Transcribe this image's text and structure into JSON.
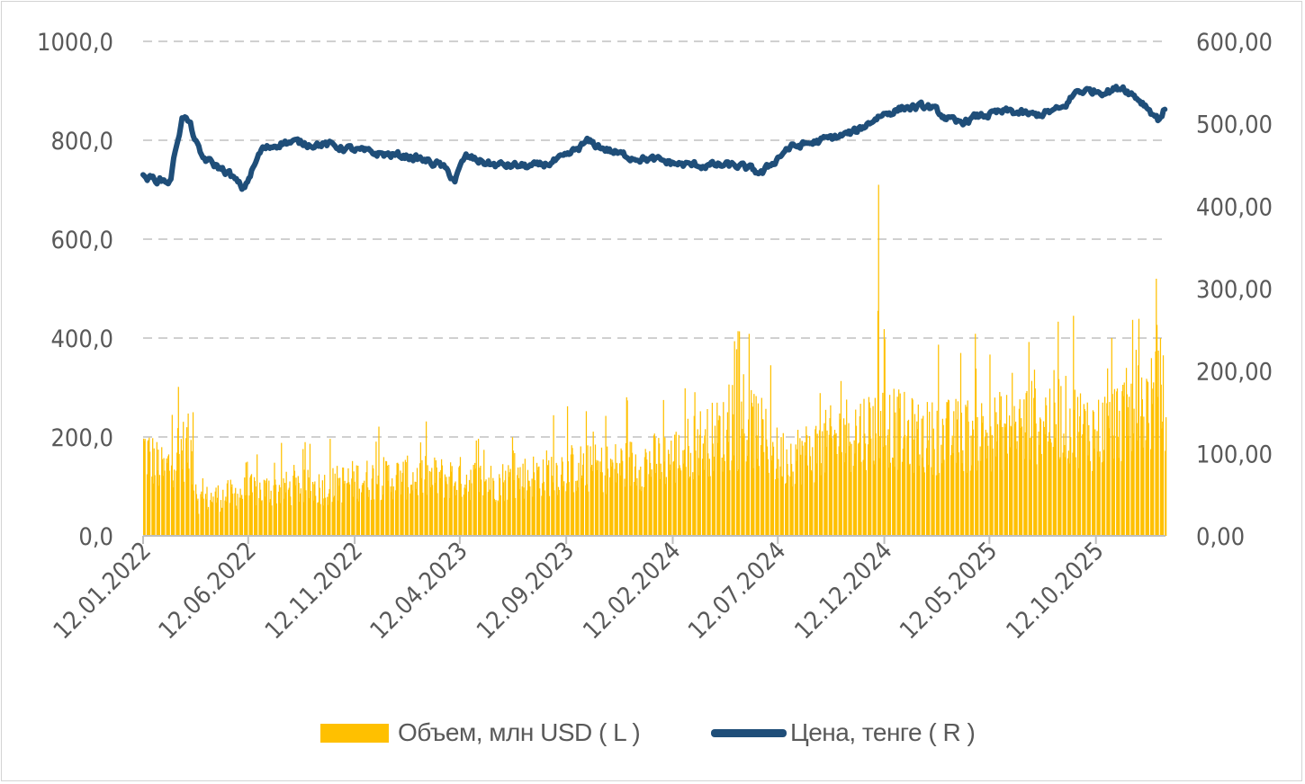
{
  "colors": {
    "volume": "#FFC000",
    "price": "#1F4E79",
    "grid": "#d0d0d0",
    "text": "#595959"
  },
  "chart_data": {
    "type": "bar+line",
    "title": "",
    "grid": "horizontal dashed",
    "legend_position": "bottom",
    "left_axis": {
      "ylim": [
        0,
        1000
      ],
      "tick_labels": [
        "0,0",
        "200,0",
        "400,0",
        "600,0",
        "800,0",
        "1000,0"
      ],
      "tick_values": [
        0,
        200,
        400,
        600,
        800,
        1000
      ]
    },
    "right_axis": {
      "ylim": [
        0,
        600
      ],
      "tick_labels": [
        "0,00",
        "100,00",
        "200,00",
        "300,00",
        "400,00",
        "500,00",
        "600,00"
      ],
      "tick_values": [
        0,
        100,
        200,
        300,
        400,
        500,
        600
      ]
    },
    "x_axis": {
      "start": "2022-01-12",
      "end": "2026-01-20",
      "tick_labels": [
        "12.01.2022",
        "12.06.2022",
        "12.11.2022",
        "12.04.2023",
        "12.09.2023",
        "12.02.2024",
        "12.07.2024",
        "12.12.2024",
        "12.05.2025",
        "12.10.2025"
      ],
      "tick_dates": [
        "2022-01-12",
        "2022-06-12",
        "2022-11-12",
        "2023-04-12",
        "2023-09-12",
        "2024-02-12",
        "2024-07-12",
        "2024-12-12",
        "2025-05-12",
        "2025-10-12"
      ]
    },
    "series": [
      {
        "name": "Объем, млн USD ( L )",
        "axis": "left",
        "kind": "bar",
        "anchors": [
          [
            "2022-01-12",
            195
          ],
          [
            "2022-02-10",
            140
          ],
          [
            "2022-03-01",
            190
          ],
          [
            "2022-03-20",
            200
          ],
          [
            "2022-04-01",
            80
          ],
          [
            "2022-05-10",
            90
          ],
          [
            "2022-06-12",
            100
          ],
          [
            "2022-08-01",
            105
          ],
          [
            "2022-10-01",
            110
          ],
          [
            "2022-11-12",
            125
          ],
          [
            "2023-01-01",
            130
          ],
          [
            "2023-04-12",
            130
          ],
          [
            "2023-06-01",
            120
          ],
          [
            "2023-09-12",
            150
          ],
          [
            "2023-11-01",
            150
          ],
          [
            "2024-02-12",
            175
          ],
          [
            "2024-03-20",
            210
          ],
          [
            "2024-05-01",
            230
          ],
          [
            "2024-06-10",
            240
          ],
          [
            "2024-07-12",
            175
          ],
          [
            "2024-09-01",
            190
          ],
          [
            "2024-10-15",
            230
          ],
          [
            "2024-12-12",
            250
          ],
          [
            "2025-02-01",
            220
          ],
          [
            "2025-05-12",
            230
          ],
          [
            "2025-07-01",
            250
          ],
          [
            "2025-08-15",
            270
          ],
          [
            "2025-10-12",
            230
          ],
          [
            "2025-12-01",
            280
          ],
          [
            "2026-01-20",
            310
          ]
        ],
        "spikes": [
          [
            "2022-03-05",
            255
          ],
          [
            "2022-03-24",
            250
          ],
          [
            "2023-05-27",
            290
          ],
          [
            "2024-05-18",
            370
          ],
          [
            "2024-07-01",
            345
          ],
          [
            "2024-12-03",
            710
          ],
          [
            "2024-12-02",
            455
          ],
          [
            "2025-06-14",
            455
          ],
          [
            "2025-09-09",
            445
          ],
          [
            "2025-12-07",
            395
          ],
          [
            "2026-01-06",
            520
          ],
          [
            "2026-01-12",
            400
          ],
          [
            "2025-11-22",
            415
          ],
          [
            "2025-11-03",
            400
          ]
        ]
      },
      {
        "name": "Цена, тенге ( R )",
        "axis": "right",
        "kind": "line",
        "anchors": [
          [
            "2022-01-12",
            435
          ],
          [
            "2022-02-20",
            430
          ],
          [
            "2022-03-01",
            475
          ],
          [
            "2022-03-10",
            510
          ],
          [
            "2022-03-20",
            500
          ],
          [
            "2022-04-05",
            460
          ],
          [
            "2022-05-15",
            440
          ],
          [
            "2022-06-05",
            420
          ],
          [
            "2022-07-01",
            468
          ],
          [
            "2022-08-01",
            478
          ],
          [
            "2022-10-01",
            475
          ],
          [
            "2022-12-01",
            465
          ],
          [
            "2023-02-01",
            460
          ],
          [
            "2023-03-15",
            450
          ],
          [
            "2023-04-05",
            432
          ],
          [
            "2023-04-20",
            460
          ],
          [
            "2023-06-01",
            450
          ],
          [
            "2023-08-01",
            448
          ],
          [
            "2023-09-10",
            458
          ],
          [
            "2023-10-12",
            478
          ],
          [
            "2023-12-01",
            462
          ],
          [
            "2024-03-01",
            450
          ],
          [
            "2024-05-15",
            449
          ],
          [
            "2024-06-20",
            440
          ],
          [
            "2024-07-25",
            470
          ],
          [
            "2024-09-15",
            480
          ],
          [
            "2024-11-01",
            490
          ],
          [
            "2024-12-05",
            510
          ],
          [
            "2025-01-10",
            520
          ],
          [
            "2025-02-15",
            520
          ],
          [
            "2025-03-25",
            500
          ],
          [
            "2025-05-01",
            510
          ],
          [
            "2025-06-10",
            515
          ],
          [
            "2025-07-15",
            510
          ],
          [
            "2025-08-25",
            518
          ],
          [
            "2025-09-15",
            540
          ],
          [
            "2025-11-01",
            540
          ],
          [
            "2025-11-20",
            545
          ],
          [
            "2025-12-20",
            525
          ],
          [
            "2026-01-10",
            505
          ],
          [
            "2026-01-20",
            520
          ]
        ]
      }
    ]
  }
}
